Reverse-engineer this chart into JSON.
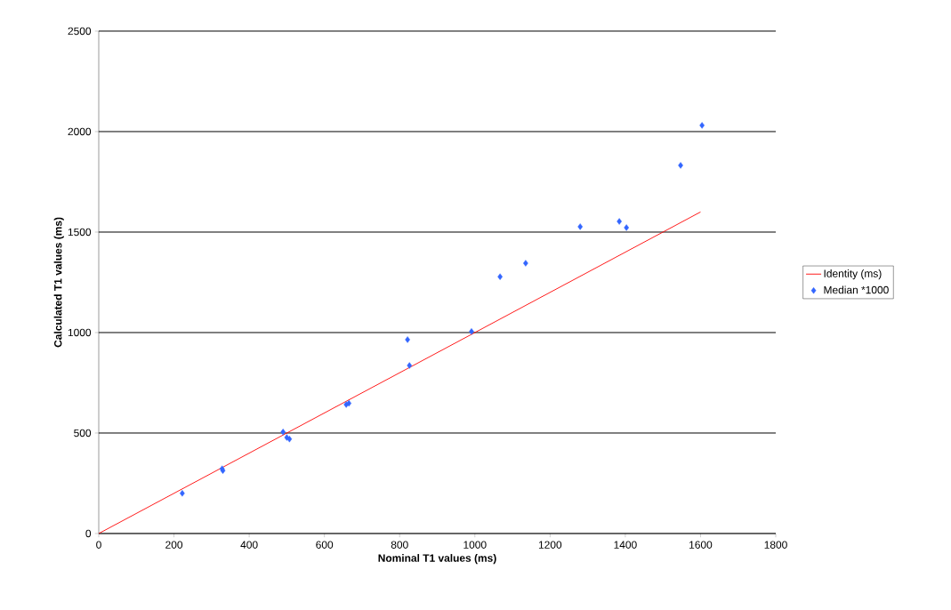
{
  "chart_data": {
    "type": "scatter",
    "xlabel": "Nominal T1 values (ms)",
    "ylabel": "Calculated T1 values (ms)",
    "xlim": [
      0,
      1800
    ],
    "ylim": [
      0,
      2500
    ],
    "xticks": [
      0,
      200,
      400,
      600,
      800,
      1000,
      1200,
      1400,
      1600,
      1800
    ],
    "yticks": [
      0,
      500,
      1000,
      1500,
      2000,
      2500
    ],
    "grid": "y",
    "legend": "right",
    "series": [
      {
        "name": "Identity (ms)",
        "type": "line",
        "color": "#ff0000",
        "marker": "none",
        "x": [
          0,
          1600
        ],
        "values": [
          0,
          1600
        ]
      },
      {
        "name": "Median *1000",
        "color": "#3366ff",
        "marker": "diamond",
        "x": [
          222,
          328,
          330,
          490,
          500,
          507,
          658,
          665,
          821,
          826,
          991,
          1067,
          1135,
          1280,
          1384,
          1403,
          1547,
          1604
        ],
        "values": [
          200,
          322,
          313,
          505,
          478,
          470,
          642,
          648,
          965,
          836,
          1005,
          1278,
          1345,
          1527,
          1553,
          1522,
          1832,
          2031
        ]
      }
    ]
  }
}
